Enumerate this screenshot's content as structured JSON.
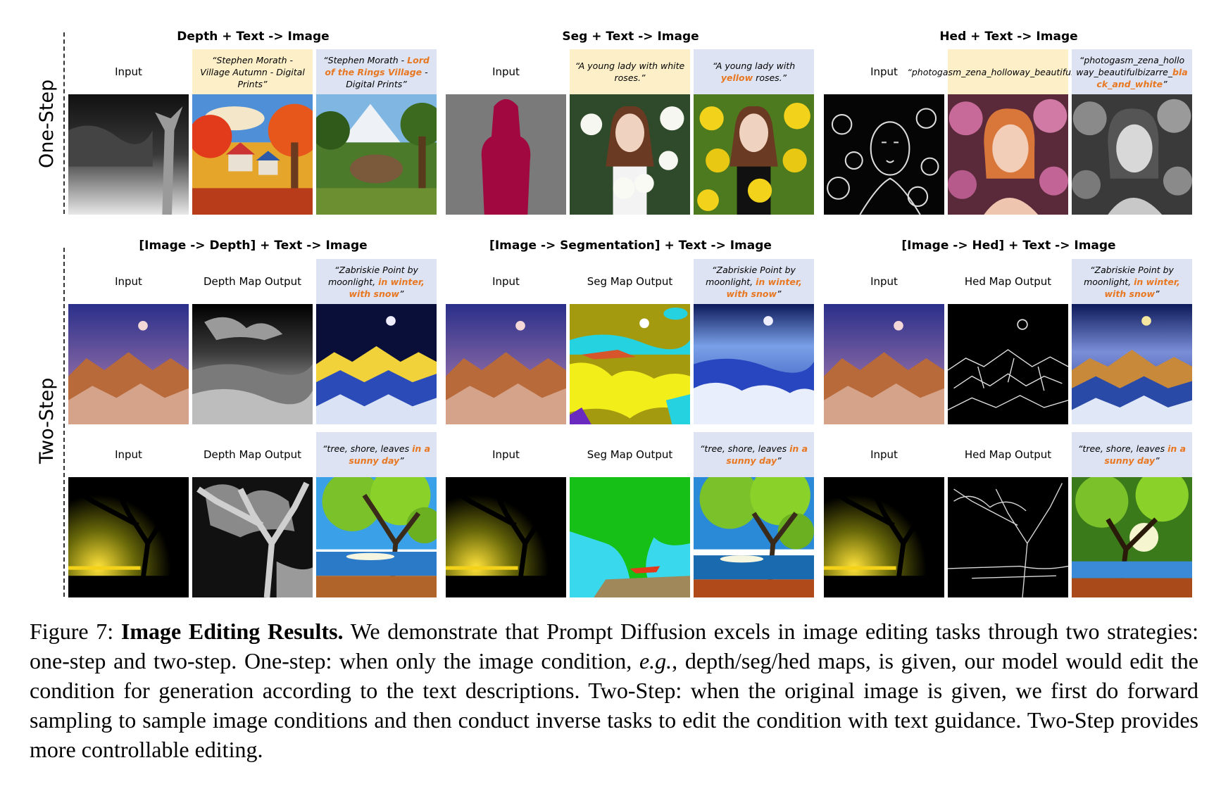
{
  "rows": {
    "one_step": "One-Step",
    "two_step": "Two-Step"
  },
  "groups_one": [
    {
      "title": "Depth + Text -> Image",
      "input_label": "Input",
      "cap1": {
        "pre": "“Stephen Morath - Village Autumn - Digital Prints”",
        "hl": "",
        "post": ""
      },
      "cap2": {
        "pre": "“Stephen Morath - ",
        "hl": "Lord of the Rings Village",
        "post": " - Digital Prints”"
      }
    },
    {
      "title": "Seg + Text -> Image",
      "input_label": "Input",
      "cap1": {
        "pre": "“A young lady with white roses.”",
        "hl": "",
        "post": ""
      },
      "cap2": {
        "pre": "“A young lady with ",
        "hl": "yellow",
        "post": " roses.”"
      }
    },
    {
      "title": "Hed + Text -> Image",
      "input_label": "Input",
      "cap1": {
        "pre": "“photogasm_zena_holloway_beautifulbizarre”",
        "hl": "",
        "post": ""
      },
      "cap2": {
        "pre": "“photogasm_zena_holloway_beautifulbizarre_",
        "hl": "black_and_white",
        "post": "”"
      }
    }
  ],
  "groups_two": [
    {
      "title": "[Image -> Depth] + Text -> Image",
      "input_label": "Input",
      "map_label": "Depth Map Output"
    },
    {
      "title": "[Image -> Segmentation] + Text -> Image",
      "input_label": "Input",
      "map_label": "Seg Map Output"
    },
    {
      "title": "[Image -> Hed] + Text -> Image",
      "input_label": "Input",
      "map_label": "Hed Map Output"
    }
  ],
  "two_step_prompts": {
    "row1": {
      "pre": "“Zabriskie Point by moonlight, ",
      "hl": "in winter, with snow",
      "post": "”"
    },
    "row2": {
      "pre": "“tree, shore, leaves ",
      "hl": "in a sunny day",
      "post": "”"
    }
  },
  "caption": {
    "label": "Figure 7: ",
    "bold": "Image Editing Results.",
    "text1": " We demonstrate that Prompt Diffusion excels in image editing tasks through two strategies: one-step and two-step. One-step: when only the image condition, ",
    "italic": "e.g.",
    "text2": ", depth/seg/hed maps, is given, our model would edit the condition for generation according to the text descriptions. Two-Step: when the original image is given, we first do forward sampling to sample image conditions and then conduct inverse tasks to edit the condition with text guidance. Two-Step provides more controllable editing."
  },
  "colors": {
    "highlight": "#e87722",
    "yellow_box": "#fdf0c9",
    "blue_box": "#dde3f2"
  }
}
